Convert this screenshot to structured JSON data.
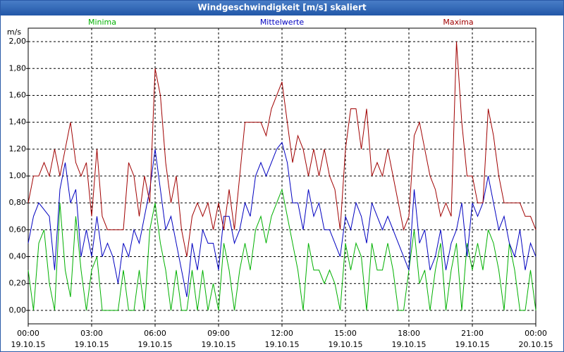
{
  "chart_data": {
    "type": "line",
    "title": "Windgeschwindigkeit [m/s] skaliert",
    "y_label": "m/s",
    "x": [
      0,
      0.25,
      0.5,
      0.75,
      1,
      1.25,
      1.5,
      1.75,
      2,
      2.25,
      2.5,
      2.75,
      3,
      3.25,
      3.5,
      3.75,
      4,
      4.25,
      4.5,
      4.75,
      5,
      5.25,
      5.5,
      5.75,
      6,
      6.25,
      6.5,
      6.75,
      7,
      7.25,
      7.5,
      7.75,
      8,
      8.25,
      8.5,
      8.75,
      9,
      9.25,
      9.5,
      9.75,
      10,
      10.25,
      10.5,
      10.75,
      11,
      11.25,
      11.5,
      11.75,
      12,
      12.25,
      12.5,
      12.75,
      13,
      13.25,
      13.5,
      13.75,
      14,
      14.25,
      14.5,
      14.75,
      15,
      15.25,
      15.5,
      15.75,
      16,
      16.25,
      16.5,
      16.75,
      17,
      17.25,
      17.5,
      17.75,
      18,
      18.25,
      18.5,
      18.75,
      19,
      19.25,
      19.5,
      19.75,
      20,
      20.25,
      20.5,
      20.75,
      21,
      21.25,
      21.5,
      21.75,
      22,
      22.25,
      22.5,
      22.75,
      23,
      23.25,
      23.5,
      23.75,
      24
    ],
    "series": [
      {
        "name": "Minima",
        "color": "#00b000",
        "values": [
          0.3,
          0,
          0.5,
          0.6,
          0.2,
          0,
          0.8,
          0.3,
          0.1,
          0.7,
          0.3,
          0,
          0.3,
          0.4,
          0,
          0,
          0,
          0,
          0.3,
          0,
          0,
          0.3,
          0,
          0.6,
          0.8,
          0.5,
          0.3,
          0,
          0.3,
          0,
          0,
          0.3,
          0,
          0.3,
          0,
          0.2,
          0,
          0.5,
          0.3,
          0,
          0.3,
          0.5,
          0.3,
          0.6,
          0.7,
          0.5,
          0.7,
          0.8,
          0.9,
          0.7,
          0.5,
          0.3,
          0,
          0.5,
          0.3,
          0.3,
          0.2,
          0.3,
          0.2,
          0,
          0.5,
          0.3,
          0.5,
          0.4,
          0,
          0.5,
          0.3,
          0.3,
          0.5,
          0.3,
          0,
          0,
          0.3,
          0.6,
          0.2,
          0.3,
          0,
          0.3,
          0.5,
          0,
          0.3,
          0.5,
          0,
          0.5,
          0.3,
          0.5,
          0.3,
          0.6,
          0.5,
          0.3,
          0,
          0.5,
          0.3,
          0,
          0,
          0.3,
          0
        ]
      },
      {
        "name": "Mittelwerte",
        "color": "#0000c0",
        "values": [
          0.5,
          0.7,
          0.8,
          0.75,
          0.7,
          0.3,
          0.9,
          1.1,
          0.8,
          0.9,
          0.4,
          0.6,
          0.4,
          0.7,
          0.4,
          0.5,
          0.4,
          0.2,
          0.5,
          0.4,
          0.6,
          0.5,
          0.7,
          0.9,
          1.2,
          0.9,
          0.6,
          0.7,
          0.5,
          0.3,
          0.1,
          0.5,
          0.3,
          0.6,
          0.5,
          0.5,
          0.3,
          0.7,
          0.7,
          0.5,
          0.6,
          0.8,
          0.7,
          1,
          1.1,
          1,
          1.1,
          1.2,
          1.25,
          1.1,
          0.8,
          0.8,
          0.6,
          0.9,
          0.7,
          0.8,
          0.6,
          0.6,
          0.5,
          0.4,
          0.7,
          0.6,
          0.8,
          0.7,
          0.5,
          0.8,
          0.7,
          0.6,
          0.7,
          0.6,
          0.5,
          0.4,
          0.3,
          0.9,
          0.5,
          0.6,
          0.3,
          0.4,
          0.6,
          0.3,
          0.5,
          0.6,
          0.8,
          0.4,
          0.8,
          0.7,
          0.8,
          1,
          0.8,
          0.6,
          0.7,
          0.5,
          0.4,
          0.6,
          0.3,
          0.5,
          0.4
        ]
      },
      {
        "name": "Maxima",
        "color": "#a00000",
        "values": [
          0.8,
          1,
          1,
          1.1,
          1,
          1.2,
          1,
          1.2,
          1.4,
          1.1,
          1,
          1.1,
          0.7,
          1.2,
          0.7,
          0.6,
          0.6,
          0.6,
          0.6,
          1.1,
          1,
          0.7,
          1,
          0.8,
          1.8,
          1.6,
          1.1,
          0.8,
          1,
          0.6,
          0.4,
          0.7,
          0.8,
          0.7,
          0.8,
          0.6,
          0.8,
          0.6,
          0.9,
          0.6,
          1,
          1.4,
          1.4,
          1.4,
          1.4,
          1.3,
          1.5,
          1.6,
          1.7,
          1.4,
          1.1,
          1.3,
          1.2,
          1,
          1.2,
          1,
          1.2,
          1,
          0.9,
          0.6,
          1.2,
          1.5,
          1.5,
          1.2,
          1.5,
          1,
          1.1,
          1,
          1.2,
          1,
          0.8,
          0.6,
          0.7,
          1.3,
          1.4,
          1.2,
          1,
          0.9,
          0.7,
          0.8,
          0.7,
          2,
          1.4,
          1,
          1,
          0.8,
          0.8,
          1.5,
          1.3,
          1,
          0.8,
          0.8,
          0.8,
          0.8,
          0.7,
          0.7,
          0.6
        ]
      }
    ],
    "xlim": [
      0,
      24
    ],
    "xticks": [
      {
        "value": 0,
        "label": [
          "00:00",
          "19.10.15"
        ]
      },
      {
        "value": 3,
        "label": [
          "03:00",
          "19.10.15"
        ]
      },
      {
        "value": 6,
        "label": [
          "06:00",
          "19.10.15"
        ]
      },
      {
        "value": 9,
        "label": [
          "09:00",
          "19.10.15"
        ]
      },
      {
        "value": 12,
        "label": [
          "12:00",
          "19.10.15"
        ]
      },
      {
        "value": 15,
        "label": [
          "15:00",
          "19.10.15"
        ]
      },
      {
        "value": 18,
        "label": [
          "18:00",
          "19.10.15"
        ]
      },
      {
        "value": 21,
        "label": [
          "21:00",
          "19.10.15"
        ]
      },
      {
        "value": 24,
        "label": [
          "00:00",
          "20.10.15"
        ]
      }
    ],
    "ylim": [
      -0.1,
      2.1
    ],
    "yticks": [
      {
        "value": 0,
        "label": "0,00"
      },
      {
        "value": 0.2,
        "label": "0,20"
      },
      {
        "value": 0.4,
        "label": "0,40"
      },
      {
        "value": 0.6,
        "label": "0,60"
      },
      {
        "value": 0.8,
        "label": "0,80"
      },
      {
        "value": 1,
        "label": "1,00"
      },
      {
        "value": 1.2,
        "label": "1,20"
      },
      {
        "value": 1.4,
        "label": "1,40"
      },
      {
        "value": 1.6,
        "label": "1,60"
      },
      {
        "value": 1.8,
        "label": "1,80"
      },
      {
        "value": 2,
        "label": "2,00"
      }
    ],
    "grid": true
  }
}
